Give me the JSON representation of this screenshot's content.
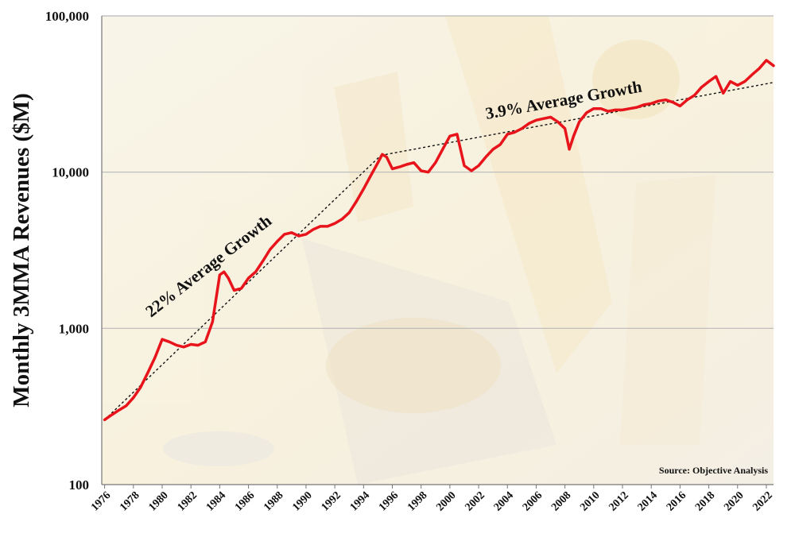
{
  "chart_data": {
    "type": "line",
    "title": "",
    "xlabel": "",
    "ylabel": "Monthly 3MMA Revenues ($M)",
    "yscale": "log",
    "ylim": [
      100,
      100000
    ],
    "xlim": [
      1975.8,
      2022.5
    ],
    "y_ticks": [
      "100",
      "1,000",
      "10,000",
      "100,000"
    ],
    "y_tick_values": [
      100,
      1000,
      10000,
      100000
    ],
    "x_ticks": [
      "1976",
      "1978",
      "1980",
      "1982",
      "1984",
      "1986",
      "1988",
      "1990",
      "1992",
      "1994",
      "1996",
      "1998",
      "2000",
      "2002",
      "2004",
      "2006",
      "2008",
      "2010",
      "2012",
      "2014",
      "2016",
      "2018",
      "2020",
      "2022"
    ],
    "grid": "horizontal",
    "series": [
      {
        "name": "",
        "color": "#e8141b",
        "x": [
          1976.0,
          1976.5,
          1977.0,
          1977.5,
          1978.0,
          1978.5,
          1979.0,
          1979.5,
          1980.0,
          1980.5,
          1981.0,
          1981.5,
          1982.0,
          1982.5,
          1983.0,
          1983.5,
          1984.0,
          1984.3,
          1984.6,
          1985.0,
          1985.5,
          1986.0,
          1986.5,
          1987.0,
          1987.5,
          1988.0,
          1988.5,
          1989.0,
          1989.5,
          1990.0,
          1990.5,
          1991.0,
          1991.5,
          1992.0,
          1992.5,
          1993.0,
          1993.5,
          1994.0,
          1994.5,
          1995.0,
          1995.3,
          1995.6,
          1996.0,
          1996.5,
          1997.0,
          1997.5,
          1998.0,
          1998.5,
          1999.0,
          1999.5,
          2000.0,
          2000.5,
          2001.0,
          2001.5,
          2002.0,
          2002.5,
          2003.0,
          2003.5,
          2004.0,
          2004.5,
          2005.0,
          2005.5,
          2006.0,
          2006.5,
          2007.0,
          2007.5,
          2008.0,
          2008.3,
          2008.6,
          2009.0,
          2009.5,
          2010.0,
          2010.5,
          2011.0,
          2011.5,
          2012.0,
          2012.5,
          2013.0,
          2013.5,
          2014.0,
          2014.5,
          2015.0,
          2015.5,
          2016.0,
          2016.5,
          2017.0,
          2017.5,
          2018.0,
          2018.5,
          2019.0,
          2019.5,
          2020.0,
          2020.5,
          2021.0,
          2021.5,
          2022.0,
          2022.5
        ],
        "values": [
          260,
          280,
          300,
          320,
          360,
          420,
          520,
          650,
          850,
          820,
          780,
          760,
          790,
          780,
          820,
          1100,
          2200,
          2300,
          2100,
          1750,
          1800,
          2100,
          2300,
          2700,
          3200,
          3600,
          4000,
          4100,
          3900,
          4000,
          4300,
          4500,
          4500,
          4700,
          5000,
          5500,
          6500,
          7800,
          9500,
          11500,
          13000,
          12500,
          10500,
          10800,
          11200,
          11500,
          10200,
          10000,
          11500,
          14000,
          17000,
          17500,
          11000,
          10200,
          11000,
          12500,
          14000,
          15000,
          17500,
          18000,
          19000,
          20500,
          21500,
          22000,
          22500,
          21000,
          19000,
          14000,
          17000,
          21000,
          24000,
          25500,
          25500,
          24500,
          25000,
          25000,
          25500,
          26000,
          27000,
          27500,
          28500,
          29000,
          28000,
          26500,
          29000,
          31000,
          35000,
          38000,
          41000,
          32000,
          38000,
          36000,
          38000,
          42000,
          46000,
          52000,
          48000
        ]
      }
    ],
    "trendlines": [
      {
        "label": "22% Average Growth",
        "x": [
          1976.0,
          1995.2
        ],
        "values": [
          260,
          12800
        ]
      },
      {
        "label": "3.9% Average Growth",
        "x": [
          1995.2,
          2022.5
        ],
        "values": [
          12800,
          37500
        ]
      }
    ],
    "annotations": [
      "22% Average Growth",
      "3.9% Average Growth"
    ],
    "source": "Source: Objective Analysis"
  }
}
